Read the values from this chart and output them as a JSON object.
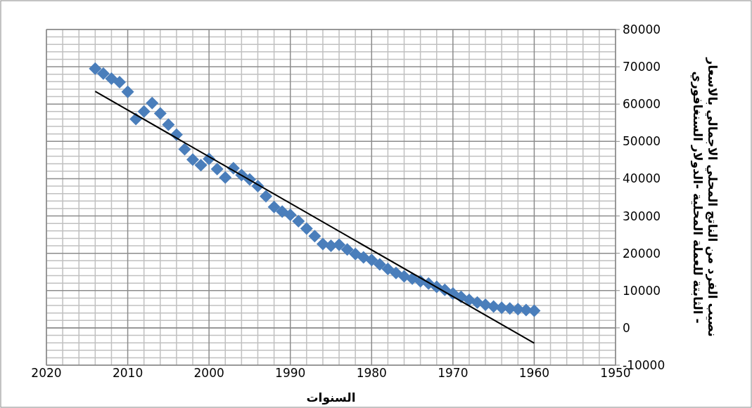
{
  "chart_data": {
    "type": "scatter",
    "xlabel": "السنوات",
    "ylabel": "نصيب الفرد من الناتج المحلي الاجمالي بالاسعار الثابتة للعملة المحلية -الدولار السنغافوري -",
    "x": [
      2014,
      2013,
      2012,
      2011,
      2010,
      2009,
      2008,
      2007,
      2006,
      2005,
      2004,
      2003,
      2002,
      2001,
      2000,
      1999,
      1998,
      1997,
      1996,
      1995,
      1994,
      1993,
      1992,
      1991,
      1990,
      1989,
      1988,
      1987,
      1986,
      1985,
      1984,
      1983,
      1982,
      1981,
      1980,
      1979,
      1978,
      1977,
      1976,
      1975,
      1974,
      1973,
      1972,
      1971,
      1970,
      1969,
      1968,
      1967,
      1966,
      1965,
      1964,
      1963,
      1962,
      1961,
      1960
    ],
    "series": [
      {
        "color": "#4a7ebb",
        "marker": "diamond",
        "values": [
          69500,
          68200,
          66800,
          65900,
          63300,
          56000,
          58000,
          60300,
          57500,
          54500,
          51800,
          47900,
          45100,
          43600,
          45300,
          42600,
          40300,
          42800,
          41000,
          39800,
          38000,
          35300,
          32400,
          31200,
          30300,
          28600,
          26600,
          24600,
          22500,
          22000,
          22300,
          21000,
          19800,
          18900,
          18200,
          17000,
          15800,
          14700,
          13800,
          13200,
          12500,
          11900,
          11000,
          10200,
          9200,
          8300,
          7500,
          6800,
          6200,
          5700,
          5400,
          5200,
          5000,
          4800,
          4600
        ]
      },
      {
        "type": "line",
        "color": "#000000",
        "x": [
          2014,
          1960
        ],
        "values": [
          63400,
          -4100
        ]
      }
    ],
    "xlim": [
      2020,
      1950
    ],
    "xticks": [
      2020,
      2010,
      2000,
      1990,
      1980,
      1970,
      1960,
      1950
    ],
    "ylim": [
      -10000,
      80000
    ],
    "yticks": [
      -10000,
      0,
      10000,
      20000,
      30000,
      40000,
      50000,
      60000,
      70000,
      80000
    ],
    "grid": true
  }
}
